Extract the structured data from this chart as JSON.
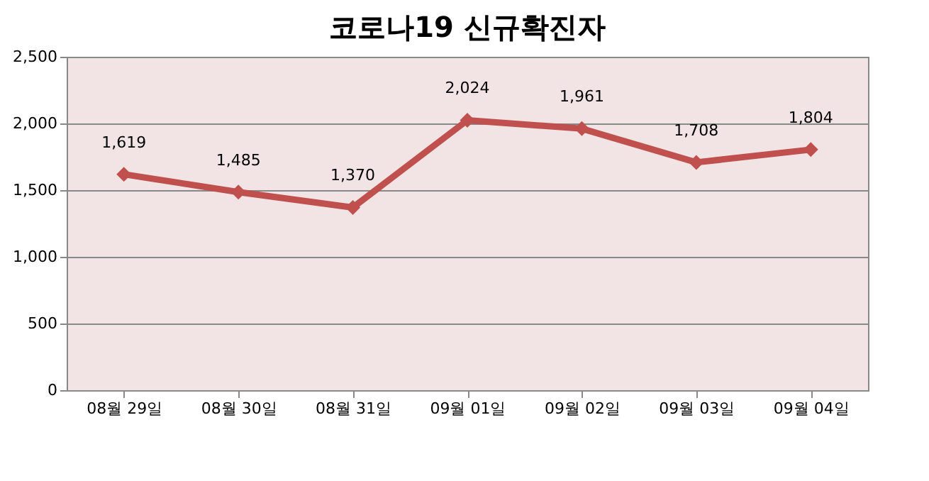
{
  "chart_data": {
    "type": "line",
    "title": "코로나19 신규확진자",
    "categories": [
      "08월 29일",
      "08월 30일",
      "08월 31일",
      "09월 01일",
      "09월 02일",
      "09월 03일",
      "09월 04일"
    ],
    "series": [
      {
        "color": "#c0504d",
        "values": [
          1619,
          1485,
          1370,
          2024,
          1961,
          1708,
          1804
        ],
        "value_labels": [
          "1,619",
          "1,485",
          "1,370",
          "2,024",
          "1,961",
          "1,708",
          "1,804"
        ]
      }
    ],
    "ylim": [
      0,
      2500
    ],
    "yticks": [
      0,
      500,
      {
        "value": 1000,
        "label": "1,000"
      },
      {
        "value": 1500,
        "label": "1,500"
      },
      {
        "value": 2000,
        "label": "2,000"
      },
      {
        "value": 2500,
        "label": "2,500"
      }
    ],
    "grid": "y",
    "marker": "diamond",
    "line_style": "solid"
  }
}
